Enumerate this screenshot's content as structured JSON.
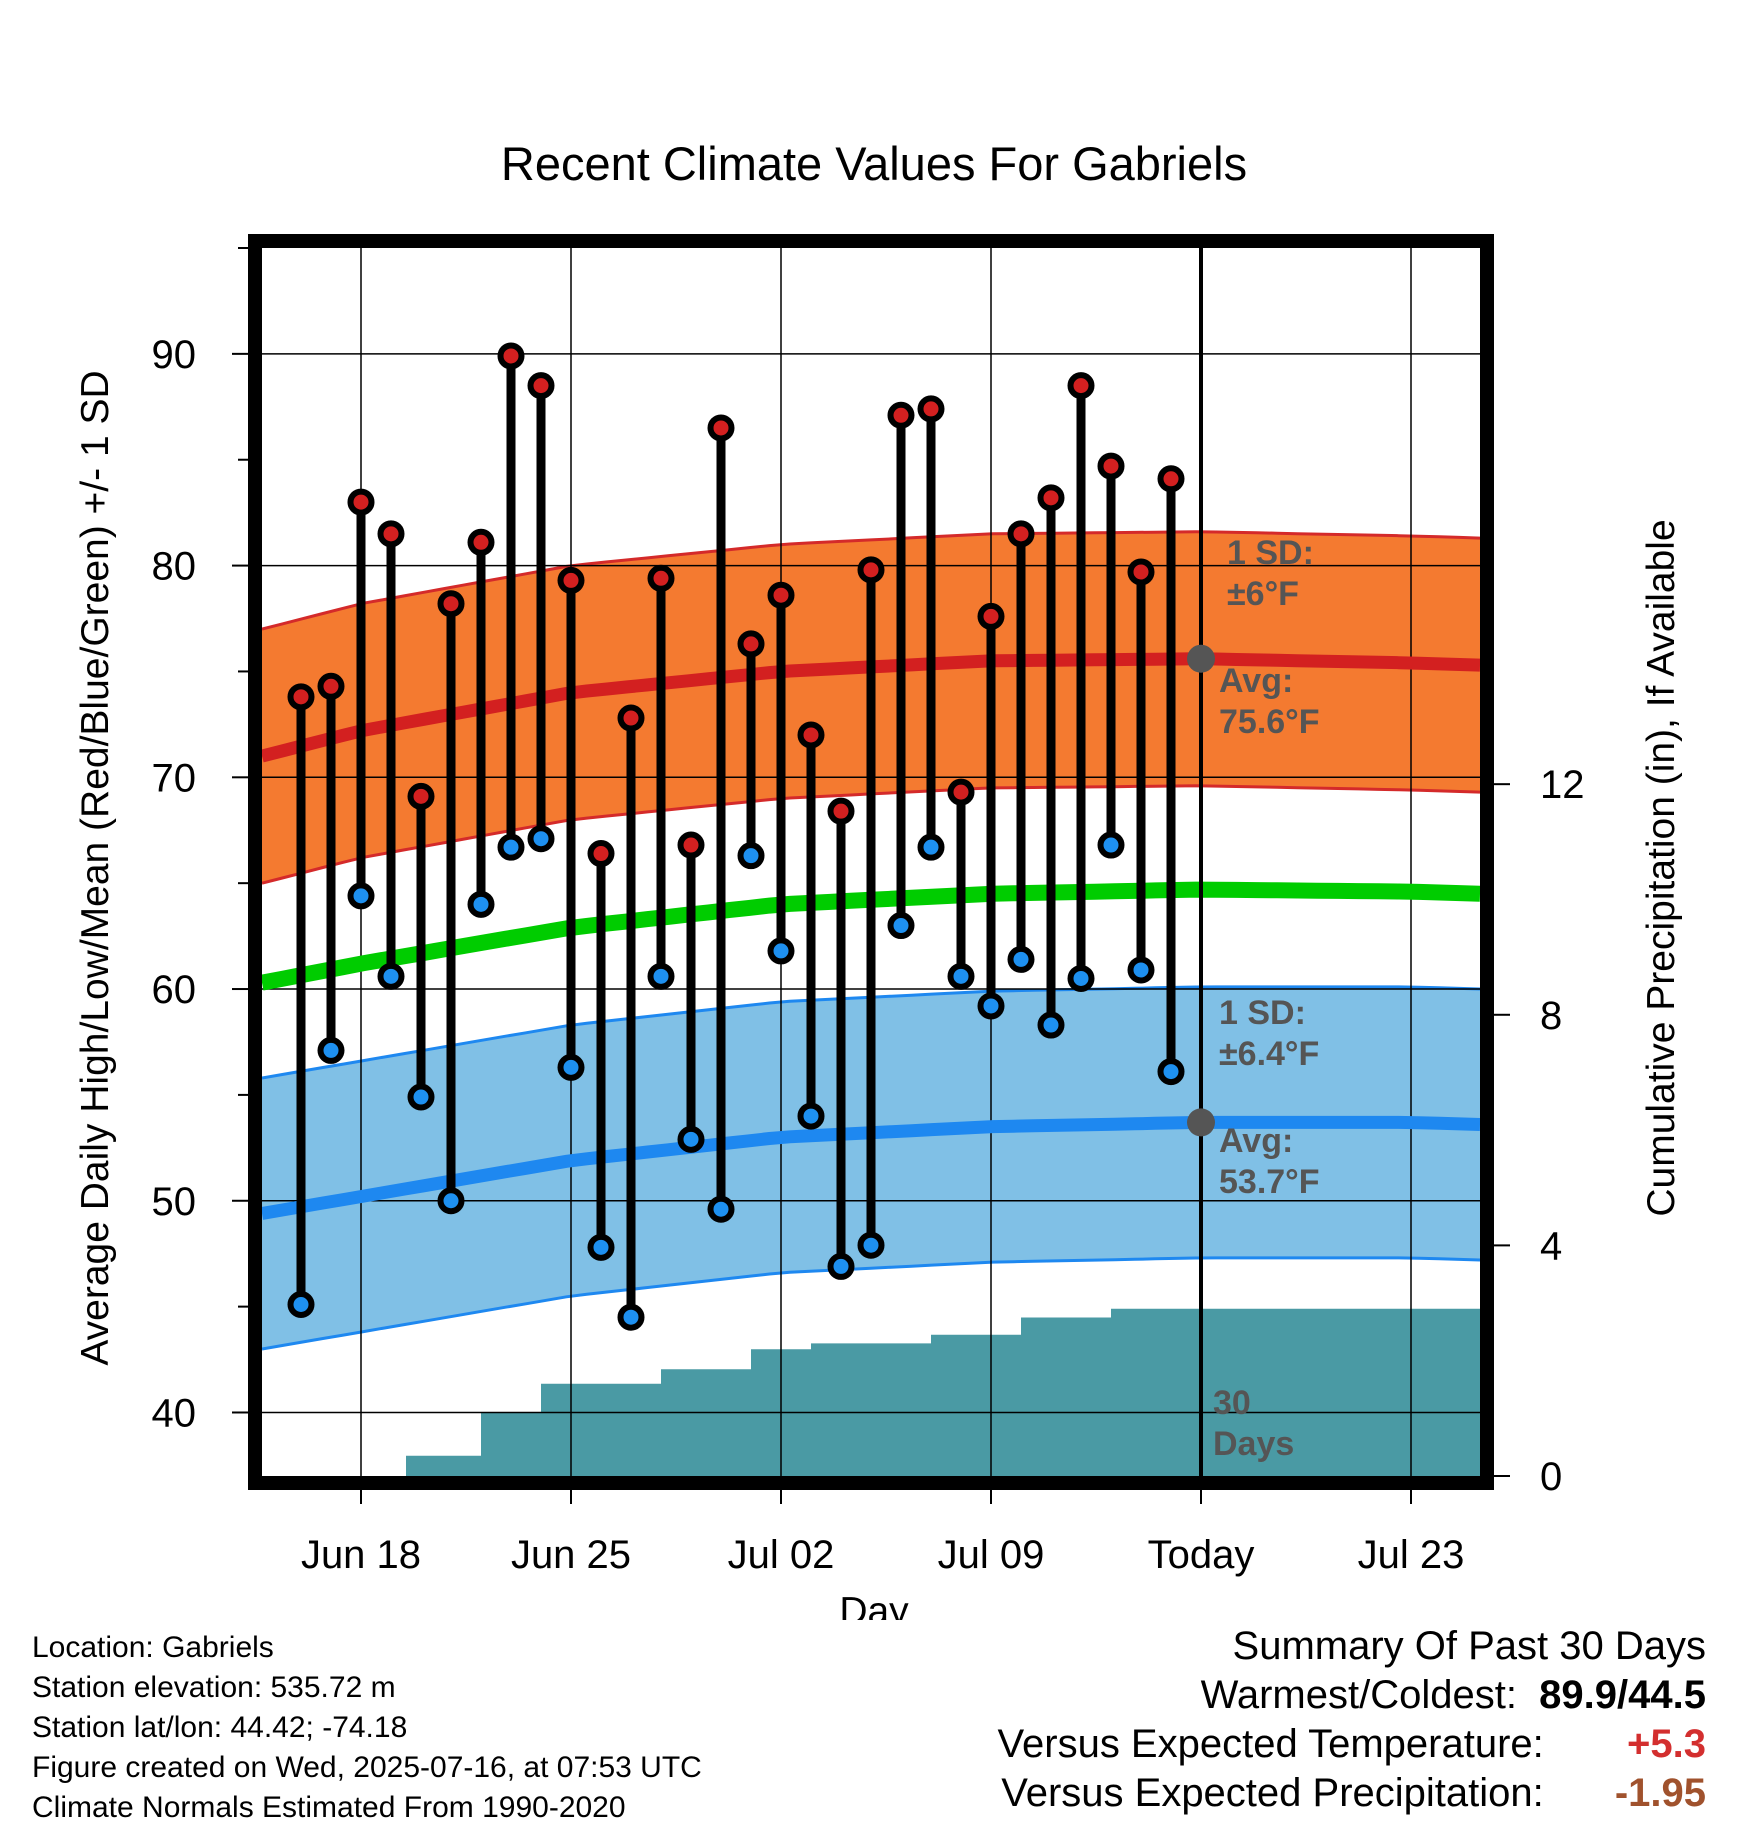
{
  "chart_data": {
    "type": "climate-range",
    "title": "Recent Climate Values For Gabriels",
    "xlabel": "Day",
    "ylabel": "Average Daily High/Low/Mean (Red/Blue/Green) +/- 1 SD",
    "y2label": "Cumulative Precipitation (in), If Available",
    "ylim": [
      37,
      95
    ],
    "yticks": [
      40,
      50,
      60,
      70,
      80,
      90
    ],
    "y2lim": [
      0,
      21.3
    ],
    "y2ticks": [
      0,
      4,
      8,
      12
    ],
    "xlim": [
      -3.3,
      37.3
    ],
    "xticks": [
      {
        "day": 0,
        "label": "Jun 18"
      },
      {
        "day": 7,
        "label": "Jun 25"
      },
      {
        "day": 14,
        "label": "Jul 02"
      },
      {
        "day": 21,
        "label": "Jul 09"
      },
      {
        "day": 28,
        "label": "Today"
      },
      {
        "day": 35,
        "label": "Jul 23"
      }
    ],
    "x_is_days_relative_to": "Jun 18",
    "today_day": 28,
    "grid": true,
    "days": [
      -2,
      -1,
      0,
      1,
      2,
      3,
      4,
      5,
      6,
      7,
      8,
      9,
      10,
      11,
      12,
      13,
      14,
      15,
      16,
      17,
      18,
      19,
      20,
      21,
      22,
      23,
      24,
      25,
      26,
      27
    ],
    "highs": [
      73.8,
      74.3,
      83.0,
      81.5,
      69.1,
      78.2,
      81.1,
      89.9,
      88.5,
      79.3,
      66.4,
      72.8,
      79.4,
      66.8,
      86.5,
      76.3,
      78.6,
      72.0,
      68.4,
      79.8,
      87.1,
      87.4,
      69.3,
      77.6,
      81.5,
      83.2,
      88.5,
      84.7,
      79.7,
      84.1
    ],
    "lows": [
      45.1,
      57.1,
      64.4,
      60.6,
      54.9,
      50.0,
      64.0,
      66.7,
      67.1,
      56.3,
      47.8,
      44.5,
      60.6,
      52.9,
      49.6,
      66.3,
      61.8,
      54.0,
      46.9,
      47.9,
      63.0,
      66.7,
      60.6,
      59.2,
      61.4,
      58.3,
      60.5,
      66.8,
      60.9,
      56.1
    ],
    "normal_x": [
      -3.3,
      0,
      7,
      14,
      21,
      28,
      35,
      37.3
    ],
    "normal_high": [
      71.0,
      72.2,
      74.0,
      75.0,
      75.5,
      75.6,
      75.4,
      75.3
    ],
    "normal_high_sd": 6,
    "normal_low": [
      49.4,
      50.2,
      51.9,
      53.0,
      53.5,
      53.7,
      53.7,
      53.6
    ],
    "normal_low_sd": 6.4,
    "normal_mean": [
      60.3,
      61.2,
      62.9,
      64.0,
      64.5,
      64.7,
      64.6,
      64.5
    ],
    "precip_days": [
      -0.5,
      1.5,
      3,
      4,
      5,
      6,
      7,
      8,
      9,
      10,
      11,
      12,
      13,
      14,
      15,
      16,
      17,
      18,
      19,
      20,
      21,
      22,
      23,
      24,
      25,
      26,
      27,
      28,
      37.3
    ],
    "precip_cum": [
      0,
      0.35,
      0.35,
      1.1,
      1.1,
      1.6,
      1.6,
      1.6,
      1.6,
      1.85,
      1.85,
      1.85,
      2.2,
      2.2,
      2.3,
      2.3,
      2.3,
      2.3,
      2.45,
      2.45,
      2.45,
      2.75,
      2.75,
      2.75,
      2.9,
      2.9,
      2.9,
      2.9,
      2.9
    ],
    "annotations": {
      "high_sd": "1 SD:\n±6°F",
      "high_avg": "Avg:\n75.6°F",
      "low_sd": "1 SD:\n±6.4°F",
      "low_avg": "Avg:\n53.7°F",
      "window": "30\nDays"
    },
    "colors": {
      "high_band": "#f47a30",
      "high_band_edge": "#d42a2a",
      "high_avg": "#d32020",
      "low_band": "#80c0e6",
      "low_band_edge": "#1e88f0",
      "low_avg": "#1e88f0",
      "mean": "#00cc00",
      "precip": "#4a9aa4",
      "high_marker": "#d32020",
      "low_marker": "#1e90f0"
    }
  },
  "footer": {
    "location": "Location: Gabriels",
    "elevation": "Station elevation: 535.72 m",
    "latlon": "Station lat/lon: 44.42; -74.18",
    "created": "Figure created on Wed, 2025-07-16, at 07:53 UTC",
    "normals": "Climate Normals Estimated From 1990-2020"
  },
  "summary": {
    "title": "Summary Of Past 30 Days",
    "warmest_label": "Warmest/Coldest:",
    "warmest_value": "89.9/44.5",
    "temp_label": "Versus Expected Temperature:",
    "temp_value": "+5.3",
    "precip_label": "Versus Expected Precipitation:",
    "precip_value": "-1.95"
  }
}
